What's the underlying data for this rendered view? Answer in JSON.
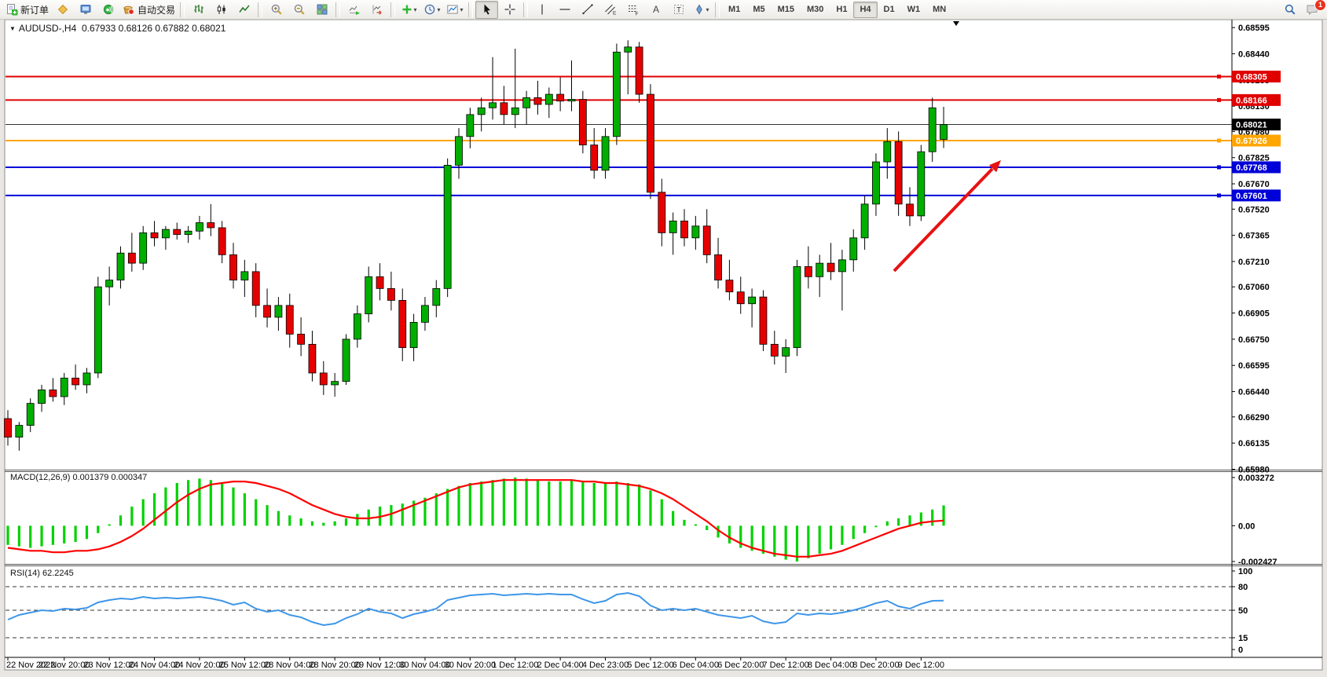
{
  "window": {
    "symbol_period": "AUDUSD-,H4",
    "ohlc_text": "0.67933 0.68126 0.67882 0.68021"
  },
  "toolbar": {
    "new_order_label": "新订单",
    "autotrading_label": "自动交易",
    "timeframes": [
      {
        "label": "M1"
      },
      {
        "label": "M5"
      },
      {
        "label": "M15"
      },
      {
        "label": "M30"
      },
      {
        "label": "H1"
      },
      {
        "label": "H4",
        "active": true
      },
      {
        "label": "D1"
      },
      {
        "label": "W1"
      },
      {
        "label": "MN"
      }
    ],
    "notification_count": "1"
  },
  "chart_data": {
    "type": "candlestick",
    "symbol": "AUDUSD-",
    "period": "H4",
    "current_bar": {
      "open": 0.67933,
      "high": 0.68126,
      "low": 0.67882,
      "close": 0.68021
    },
    "colors": {
      "up": "#00AE00",
      "down": "#E60000",
      "wick": "#000000"
    },
    "price_axis_ticks": [
      "0.68595",
      "0.68440",
      "0.68285",
      "0.68130",
      "0.67980",
      "0.67825",
      "0.67670",
      "0.67520",
      "0.67365",
      "0.67210",
      "0.67060",
      "0.66905",
      "0.66750",
      "0.66595",
      "0.66440",
      "0.66290",
      "0.66135",
      "0.65980"
    ],
    "hlines": [
      {
        "price": 0.68305,
        "label": "0.68305",
        "color": "#E00000",
        "width": 2
      },
      {
        "price": 0.68166,
        "label": "0.68166",
        "color": "#E00000",
        "width": 2
      },
      {
        "price": 0.67926,
        "label": "0.67926",
        "color": "#FFA500",
        "width": 2
      },
      {
        "price": 0.67768,
        "label": "0.67768",
        "color": "#0000D8",
        "width": 2
      },
      {
        "price": 0.67601,
        "label": "0.67601",
        "color": "#0000D8",
        "width": 2
      }
    ],
    "current_price_line": {
      "price": 0.68021,
      "label": "0.68021",
      "color": "#000000"
    },
    "time_labels": [
      {
        "index": 0,
        "label": "22 Nov 2022"
      },
      {
        "index": 5,
        "label": "22 Nov 20:00"
      },
      {
        "index": 9,
        "label": "23 Nov 12:00"
      },
      {
        "index": 13,
        "label": "24 Nov 04:00"
      },
      {
        "index": 17,
        "label": "24 Nov 20:00"
      },
      {
        "index": 21,
        "label": "25 Nov 12:00"
      },
      {
        "index": 25,
        "label": "28 Nov 04:00"
      },
      {
        "index": 29,
        "label": "28 Nov 20:00"
      },
      {
        "index": 33,
        "label": "29 Nov 12:00"
      },
      {
        "index": 37,
        "label": "30 Nov 04:00"
      },
      {
        "index": 41,
        "label": "30 Nov 20:00"
      },
      {
        "index": 45,
        "label": "1 Dec 12:00"
      },
      {
        "index": 49,
        "label": "2 Dec 04:00"
      },
      {
        "index": 53,
        "label": "4 Dec 23:00"
      },
      {
        "index": 57,
        "label": "5 Dec 12:00"
      },
      {
        "index": 61,
        "label": "6 Dec 04:00"
      },
      {
        "index": 65,
        "label": "6 Dec 20:00"
      },
      {
        "index": 69,
        "label": "7 Dec 12:00"
      },
      {
        "index": 73,
        "label": "8 Dec 04:00"
      },
      {
        "index": 77,
        "label": "8 Dec 20:00"
      },
      {
        "index": 81,
        "label": "9 Dec 12:00"
      }
    ],
    "candles": [
      [
        0.6628,
        0.6633,
        0.6612,
        0.6617
      ],
      [
        0.6617,
        0.6626,
        0.6609,
        0.6624
      ],
      [
        0.6624,
        0.664,
        0.662,
        0.6637
      ],
      [
        0.6637,
        0.6648,
        0.6632,
        0.6645
      ],
      [
        0.6645,
        0.6652,
        0.6638,
        0.6641
      ],
      [
        0.6641,
        0.6655,
        0.6636,
        0.6652
      ],
      [
        0.6652,
        0.666,
        0.6645,
        0.6648
      ],
      [
        0.6648,
        0.6658,
        0.6643,
        0.6655
      ],
      [
        0.6655,
        0.6712,
        0.6652,
        0.6706
      ],
      [
        0.6706,
        0.6718,
        0.6695,
        0.671
      ],
      [
        0.671,
        0.673,
        0.6705,
        0.6726
      ],
      [
        0.6726,
        0.6738,
        0.6715,
        0.672
      ],
      [
        0.672,
        0.6742,
        0.6716,
        0.6738
      ],
      [
        0.6738,
        0.6745,
        0.673,
        0.6735
      ],
      [
        0.6735,
        0.6742,
        0.6728,
        0.674
      ],
      [
        0.674,
        0.6744,
        0.6734,
        0.6737
      ],
      [
        0.6737,
        0.6742,
        0.6732,
        0.6739
      ],
      [
        0.6739,
        0.6748,
        0.6734,
        0.6744
      ],
      [
        0.6744,
        0.6755,
        0.6736,
        0.6741
      ],
      [
        0.6741,
        0.6745,
        0.672,
        0.6725
      ],
      [
        0.6725,
        0.6732,
        0.6705,
        0.671
      ],
      [
        0.671,
        0.6722,
        0.67,
        0.6715
      ],
      [
        0.6715,
        0.672,
        0.6688,
        0.6695
      ],
      [
        0.6695,
        0.6705,
        0.6682,
        0.6688
      ],
      [
        0.6688,
        0.67,
        0.668,
        0.6695
      ],
      [
        0.6695,
        0.6702,
        0.667,
        0.6678
      ],
      [
        0.6678,
        0.6688,
        0.6665,
        0.6672
      ],
      [
        0.6672,
        0.668,
        0.665,
        0.6655
      ],
      [
        0.6655,
        0.6662,
        0.6642,
        0.6648
      ],
      [
        0.6648,
        0.6655,
        0.6641,
        0.665
      ],
      [
        0.665,
        0.6678,
        0.6648,
        0.6675
      ],
      [
        0.6675,
        0.6695,
        0.667,
        0.669
      ],
      [
        0.669,
        0.6718,
        0.6685,
        0.6712
      ],
      [
        0.6712,
        0.672,
        0.6698,
        0.6705
      ],
      [
        0.6705,
        0.6715,
        0.6692,
        0.6698
      ],
      [
        0.6698,
        0.6705,
        0.6662,
        0.667
      ],
      [
        0.667,
        0.669,
        0.6662,
        0.6685
      ],
      [
        0.6685,
        0.67,
        0.668,
        0.6695
      ],
      [
        0.6695,
        0.671,
        0.6688,
        0.6705
      ],
      [
        0.6705,
        0.6782,
        0.67,
        0.6778
      ],
      [
        0.6778,
        0.68,
        0.677,
        0.6795
      ],
      [
        0.6795,
        0.6812,
        0.6788,
        0.6808
      ],
      [
        0.6808,
        0.6818,
        0.6798,
        0.6812
      ],
      [
        0.6812,
        0.6842,
        0.6805,
        0.6815
      ],
      [
        0.6815,
        0.6825,
        0.6802,
        0.6808
      ],
      [
        0.6808,
        0.6847,
        0.68,
        0.6812
      ],
      [
        0.6812,
        0.6822,
        0.6802,
        0.6818
      ],
      [
        0.6818,
        0.6828,
        0.6808,
        0.6814
      ],
      [
        0.6814,
        0.6824,
        0.6806,
        0.682
      ],
      [
        0.682,
        0.683,
        0.681,
        0.6816
      ],
      [
        0.6816,
        0.684,
        0.681,
        0.6817
      ],
      [
        0.6817,
        0.6822,
        0.6785,
        0.679
      ],
      [
        0.679,
        0.68,
        0.677,
        0.6775
      ],
      [
        0.6775,
        0.68,
        0.677,
        0.6795
      ],
      [
        0.6795,
        0.685,
        0.679,
        0.6845
      ],
      [
        0.6845,
        0.6852,
        0.682,
        0.6848
      ],
      [
        0.6848,
        0.6851,
        0.6815,
        0.682
      ],
      [
        0.682,
        0.6826,
        0.6758,
        0.6762
      ],
      [
        0.6762,
        0.677,
        0.673,
        0.6738
      ],
      [
        0.6738,
        0.675,
        0.6725,
        0.6745
      ],
      [
        0.6745,
        0.6752,
        0.673,
        0.6735
      ],
      [
        0.6735,
        0.6748,
        0.6728,
        0.6742
      ],
      [
        0.6742,
        0.6752,
        0.672,
        0.6725
      ],
      [
        0.6725,
        0.6735,
        0.6705,
        0.671
      ],
      [
        0.671,
        0.6722,
        0.6698,
        0.6703
      ],
      [
        0.6703,
        0.6712,
        0.669,
        0.6696
      ],
      [
        0.6696,
        0.6705,
        0.6682,
        0.67
      ],
      [
        0.67,
        0.6704,
        0.6668,
        0.6672
      ],
      [
        0.6672,
        0.668,
        0.666,
        0.6665
      ],
      [
        0.6665,
        0.6675,
        0.6655,
        0.667
      ],
      [
        0.667,
        0.6722,
        0.6665,
        0.6718
      ],
      [
        0.6718,
        0.673,
        0.6705,
        0.6712
      ],
      [
        0.6712,
        0.6725,
        0.67,
        0.672
      ],
      [
        0.672,
        0.6732,
        0.671,
        0.6715
      ],
      [
        0.6715,
        0.6728,
        0.6692,
        0.6722
      ],
      [
        0.6722,
        0.674,
        0.6715,
        0.6735
      ],
      [
        0.6735,
        0.676,
        0.6728,
        0.6755
      ],
      [
        0.6755,
        0.6785,
        0.6748,
        0.678
      ],
      [
        0.678,
        0.68,
        0.677,
        0.6792
      ],
      [
        0.6792,
        0.6798,
        0.6748,
        0.6755
      ],
      [
        0.6755,
        0.6765,
        0.6742,
        0.6748
      ],
      [
        0.6748,
        0.679,
        0.6745,
        0.6786
      ],
      [
        0.6786,
        0.6818,
        0.678,
        0.6812
      ],
      [
        0.67933,
        0.68126,
        0.67882,
        0.68021
      ]
    ],
    "macd": {
      "label": "MACD(12,26,9) 0.001379 0.000347",
      "params": "12,26,9",
      "main_value": 0.001379,
      "signal_value": 0.000347,
      "axis_ticks": [
        "0.003272",
        "0.00",
        "-0.002427"
      ],
      "hist_color": "#00D200",
      "signal_color": "#FF0000",
      "histogram": [
        -0.0013,
        -0.0014,
        -0.0015,
        -0.0014,
        -0.0013,
        -0.0012,
        -0.0011,
        -0.0009,
        -0.0005,
        0.0001,
        0.0007,
        0.0013,
        0.0018,
        0.0022,
        0.0026,
        0.0029,
        0.0031,
        0.0032,
        0.0031,
        0.0029,
        0.0026,
        0.0022,
        0.0018,
        0.0014,
        0.001,
        0.0007,
        0.0005,
        0.0003,
        0.0002,
        0.0003,
        0.0005,
        0.0008,
        0.0011,
        0.0013,
        0.0014,
        0.0015,
        0.0017,
        0.0019,
        0.0022,
        0.0025,
        0.0027,
        0.0029,
        0.003,
        0.0031,
        0.0032,
        0.003272,
        0.0032,
        0.0031,
        0.003,
        0.003,
        0.0031,
        0.003,
        0.0029,
        0.0029,
        0.003,
        0.0029,
        0.0028,
        0.0024,
        0.0018,
        0.001,
        0.0004,
        0.0001,
        -0.0003,
        -0.0008,
        -0.0012,
        -0.0015,
        -0.0017,
        -0.0019,
        -0.0021,
        -0.0023,
        -0.002427,
        -0.0022,
        -0.0019,
        -0.0016,
        -0.0013,
        -0.0009,
        -0.0005,
        -0.0001,
        0.0003,
        0.0005,
        0.0007,
        0.0009,
        0.0011,
        0.001379
      ],
      "signal": [
        -0.0015,
        -0.0016,
        -0.0017,
        -0.0017,
        -0.0018,
        -0.0018,
        -0.0017,
        -0.0017,
        -0.0016,
        -0.0014,
        -0.0011,
        -0.0007,
        -0.0002,
        0.0004,
        0.001,
        0.0016,
        0.0021,
        0.0025,
        0.0028,
        0.0029,
        0.003,
        0.003,
        0.0029,
        0.0027,
        0.0025,
        0.0022,
        0.0018,
        0.0014,
        0.0011,
        0.0008,
        0.0006,
        0.0005,
        0.0005,
        0.0006,
        0.0008,
        0.0011,
        0.0014,
        0.0017,
        0.002,
        0.0023,
        0.0026,
        0.0028,
        0.0029,
        0.003,
        0.0031,
        0.0031,
        0.0031,
        0.0031,
        0.0031,
        0.0031,
        0.0031,
        0.003,
        0.003,
        0.0029,
        0.0029,
        0.0028,
        0.0027,
        0.0025,
        0.0022,
        0.0018,
        0.0013,
        0.0008,
        0.0003,
        -0.0003,
        -0.0008,
        -0.0012,
        -0.0015,
        -0.0017,
        -0.0019,
        -0.002,
        -0.0021,
        -0.0021,
        -0.002,
        -0.0019,
        -0.0017,
        -0.0014,
        -0.0011,
        -0.0008,
        -0.0005,
        -0.0002,
        0.0,
        0.0002,
        0.0003,
        0.000347
      ]
    },
    "rsi": {
      "label": "RSI(14) 62.2245",
      "period": 14,
      "value": 62.2245,
      "axis_ticks": [
        "100",
        "80",
        "50",
        "15",
        "0"
      ],
      "levels": [
        80,
        50,
        15
      ],
      "color": "#3E96E8",
      "values": [
        38,
        44,
        47,
        50,
        49,
        52,
        51,
        53,
        60,
        63,
        65,
        64,
        67,
        65,
        66,
        65,
        66,
        67,
        65,
        62,
        57,
        60,
        52,
        48,
        50,
        44,
        41,
        35,
        31,
        33,
        40,
        45,
        52,
        48,
        46,
        40,
        45,
        48,
        52,
        63,
        66,
        69,
        70,
        71,
        69,
        70,
        71,
        70,
        71,
        70,
        70,
        64,
        59,
        62,
        70,
        72,
        68,
        56,
        50,
        52,
        50,
        52,
        48,
        44,
        42,
        40,
        43,
        36,
        33,
        35,
        46,
        44,
        46,
        45,
        47,
        50,
        54,
        59,
        62,
        55,
        52,
        58,
        62,
        62.22
      ]
    },
    "annotations": [
      {
        "name": "trend-arrow",
        "shape": "arrow",
        "direction": "up-right",
        "color": "#E81212"
      }
    ]
  }
}
